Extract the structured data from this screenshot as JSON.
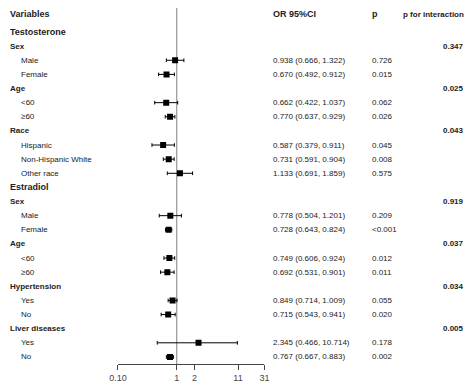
{
  "chart_data": {
    "type": "forest",
    "columns": [
      "Variables",
      "OR 95%CI",
      "p",
      "p for interaction"
    ],
    "rows": [
      {
        "label": "Testosterone",
        "is_header": true
      },
      {
        "label": "Sex",
        "is_subheader": true,
        "p_int": "0.347"
      },
      {
        "label": "Male",
        "or": 0.938,
        "ci_lo": 0.666,
        "ci_hi": 1.322,
        "or_text": "0.938 (0.666, 1.322)",
        "p": "0.726"
      },
      {
        "label": "Female",
        "or": 0.67,
        "ci_lo": 0.492,
        "ci_hi": 0.912,
        "or_text": "0.670 (0.492, 0.912)",
        "p": "0.015"
      },
      {
        "label": "Age",
        "is_subheader": true,
        "p_int": "0.025"
      },
      {
        "label": "<60",
        "or": 0.662,
        "ci_lo": 0.422,
        "ci_hi": 1.037,
        "or_text": "0.662 (0.422, 1.037)",
        "p": "0.062"
      },
      {
        "label": "≥60",
        "or": 0.77,
        "ci_lo": 0.637,
        "ci_hi": 0.929,
        "or_text": "0.770 (0.637, 0.929)",
        "p": "0.026"
      },
      {
        "label": "Race",
        "is_subheader": true,
        "p_int": "0.043"
      },
      {
        "label": "Hispanic",
        "or": 0.587,
        "ci_lo": 0.379,
        "ci_hi": 0.911,
        "or_text": "0.587 (0.379, 0.911)",
        "p": "0.045"
      },
      {
        "label": "Non-Hispanic White",
        "or": 0.731,
        "ci_lo": 0.591,
        "ci_hi": 0.904,
        "or_text": "0.731 (0.591, 0.904)",
        "p": "0.008"
      },
      {
        "label": "Other race",
        "or": 1.133,
        "ci_lo": 0.691,
        "ci_hi": 1.859,
        "or_text": "1.133 (0.691, 1.859)",
        "p": "0.575"
      },
      {
        "label": "Estradiol",
        "is_header": true
      },
      {
        "label": "Sex",
        "is_subheader": true,
        "p_int": "0.919"
      },
      {
        "label": "Male",
        "or": 0.778,
        "ci_lo": 0.504,
        "ci_hi": 1.201,
        "or_text": "0.778 (0.504, 1.201)",
        "p": "0.209"
      },
      {
        "label": "Female",
        "or": 0.728,
        "ci_lo": 0.643,
        "ci_hi": 0.824,
        "or_text": "0.728 (0.643, 0.824)",
        "p": "<0.001"
      },
      {
        "label": "Age",
        "is_subheader": true,
        "p_int": "0.037"
      },
      {
        "label": "<60",
        "or": 0.749,
        "ci_lo": 0.606,
        "ci_hi": 0.924,
        "or_text": "0.749 (0.606, 0.924)",
        "p": "0.012"
      },
      {
        "label": "≥60",
        "or": 0.692,
        "ci_lo": 0.531,
        "ci_hi": 0.901,
        "or_text": "0.692 (0.531, 0.901)",
        "p": "0.011"
      },
      {
        "label": "Hypertension",
        "is_subheader": true,
        "p_int": "0.034"
      },
      {
        "label": "Yes",
        "or": 0.849,
        "ci_lo": 0.714,
        "ci_hi": 1.009,
        "or_text": "0.849 (0.714, 1.009)",
        "p": "0.055"
      },
      {
        "label": "No",
        "or": 0.715,
        "ci_lo": 0.543,
        "ci_hi": 0.941,
        "or_text": "0.715 (0.543, 0.941)",
        "p": "0.020"
      },
      {
        "label": "Liver diseases",
        "is_subheader": true,
        "p_int": "0.005"
      },
      {
        "label": "Yes",
        "or": 2.345,
        "ci_lo": 0.466,
        "ci_hi": 10.714,
        "or_text": "2.345 (0.466, 10.714)",
        "p": "0.178"
      },
      {
        "label": "No",
        "or": 0.767,
        "ci_lo": 0.667,
        "ci_hi": 0.883,
        "or_text": "0.767 (0.667, 0.883)",
        "p": "0.002"
      }
    ],
    "log": "x",
    "xlim": [
      0.1,
      31
    ],
    "xticks": [
      {
        "value": 0.1,
        "label": "0.10"
      },
      1,
      2,
      11,
      31
    ],
    "reference_line": 1,
    "color": "#000000",
    "grid": false
  }
}
